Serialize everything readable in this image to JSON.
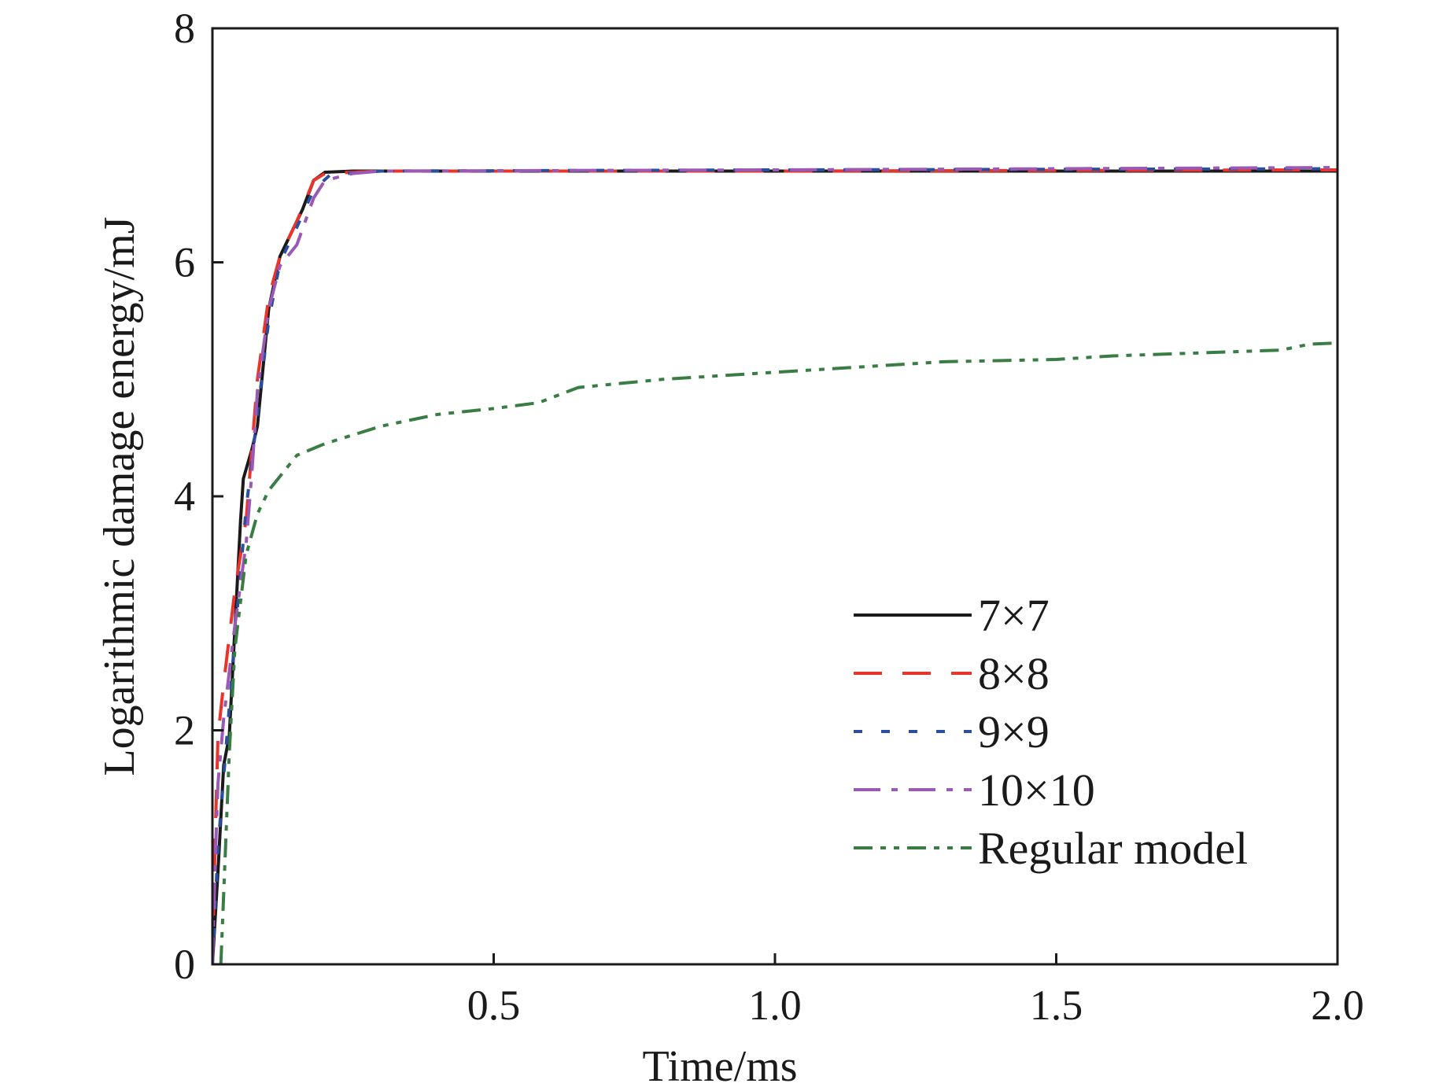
{
  "chart_data": {
    "type": "line",
    "title": "",
    "xlabel": "Time/ms",
    "ylabel": "Logarithmic damage energy/mJ",
    "xlim": [
      0,
      2.0
    ],
    "ylim": [
      0,
      8
    ],
    "xticks": [
      0.5,
      1.0,
      1.5,
      2.0
    ],
    "xtick_labels": [
      "0.5",
      "1.0",
      "1.5",
      "2.0"
    ],
    "yticks": [
      0,
      2,
      4,
      6,
      8
    ],
    "ytick_labels": [
      "0",
      "2",
      "4",
      "6",
      "8"
    ],
    "grid": false,
    "legend_position": "bottom-right",
    "series": [
      {
        "name": "7×7",
        "color": "#1a1a1a",
        "dash": "solid",
        "points": [
          [
            0.0,
            0.0
          ],
          [
            0.01,
            0.8
          ],
          [
            0.02,
            1.7
          ],
          [
            0.03,
            1.95
          ],
          [
            0.05,
            3.8
          ],
          [
            0.055,
            4.15
          ],
          [
            0.07,
            4.4
          ],
          [
            0.08,
            4.6
          ],
          [
            0.1,
            5.6
          ],
          [
            0.12,
            6.05
          ],
          [
            0.14,
            6.25
          ],
          [
            0.16,
            6.45
          ],
          [
            0.18,
            6.7
          ],
          [
            0.2,
            6.77
          ],
          [
            0.25,
            6.78
          ],
          [
            0.5,
            6.78
          ],
          [
            1.0,
            6.78
          ],
          [
            1.5,
            6.78
          ],
          [
            2.0,
            6.78
          ]
        ]
      },
      {
        "name": "8×8",
        "color": "#e8342b",
        "dash": "long",
        "points": [
          [
            0.0,
            0.0
          ],
          [
            0.005,
            1.1
          ],
          [
            0.01,
            1.95
          ],
          [
            0.02,
            2.4
          ],
          [
            0.04,
            3.2
          ],
          [
            0.06,
            3.8
          ],
          [
            0.07,
            4.4
          ],
          [
            0.08,
            5.0
          ],
          [
            0.1,
            5.7
          ],
          [
            0.12,
            6.05
          ],
          [
            0.15,
            6.35
          ],
          [
            0.18,
            6.7
          ],
          [
            0.2,
            6.76
          ],
          [
            0.3,
            6.78
          ],
          [
            1.0,
            6.78
          ],
          [
            2.0,
            6.79
          ]
        ]
      },
      {
        "name": "9×9",
        "color": "#2b4f9e",
        "dash": "dotted",
        "points": [
          [
            0.0,
            0.0
          ],
          [
            0.01,
            1.0
          ],
          [
            0.02,
            1.6
          ],
          [
            0.04,
            2.8
          ],
          [
            0.06,
            3.9
          ],
          [
            0.08,
            4.7
          ],
          [
            0.1,
            5.5
          ],
          [
            0.12,
            6.0
          ],
          [
            0.15,
            6.3
          ],
          [
            0.18,
            6.62
          ],
          [
            0.21,
            6.75
          ],
          [
            0.3,
            6.78
          ],
          [
            1.0,
            6.79
          ],
          [
            2.0,
            6.8
          ]
        ]
      },
      {
        "name": "10×10",
        "color": "#9b59b6",
        "dash": "dashdot",
        "points": [
          [
            0.0,
            0.0
          ],
          [
            0.005,
            0.9
          ],
          [
            0.01,
            1.55
          ],
          [
            0.02,
            2.1
          ],
          [
            0.04,
            2.9
          ],
          [
            0.06,
            3.6
          ],
          [
            0.07,
            4.2
          ],
          [
            0.08,
            4.9
          ],
          [
            0.1,
            5.6
          ],
          [
            0.12,
            5.97
          ],
          [
            0.15,
            6.15
          ],
          [
            0.18,
            6.55
          ],
          [
            0.2,
            6.7
          ],
          [
            0.25,
            6.76
          ],
          [
            0.3,
            6.78
          ],
          [
            1.0,
            6.79
          ],
          [
            2.0,
            6.81
          ]
        ]
      },
      {
        "name": "Regular model",
        "color": "#3a7d44",
        "dash": "dashdotdot",
        "points": [
          [
            0.015,
            0.0
          ],
          [
            0.02,
            0.6
          ],
          [
            0.03,
            1.8
          ],
          [
            0.04,
            2.7
          ],
          [
            0.06,
            3.5
          ],
          [
            0.08,
            3.85
          ],
          [
            0.1,
            4.05
          ],
          [
            0.15,
            4.35
          ],
          [
            0.2,
            4.45
          ],
          [
            0.3,
            4.6
          ],
          [
            0.4,
            4.7
          ],
          [
            0.5,
            4.75
          ],
          [
            0.58,
            4.8
          ],
          [
            0.65,
            4.93
          ],
          [
            0.8,
            5.0
          ],
          [
            1.0,
            5.06
          ],
          [
            1.2,
            5.12
          ],
          [
            1.3,
            5.15
          ],
          [
            1.5,
            5.17
          ],
          [
            1.6,
            5.2
          ],
          [
            1.9,
            5.25
          ],
          [
            1.95,
            5.3
          ],
          [
            2.0,
            5.31
          ]
        ]
      }
    ]
  }
}
